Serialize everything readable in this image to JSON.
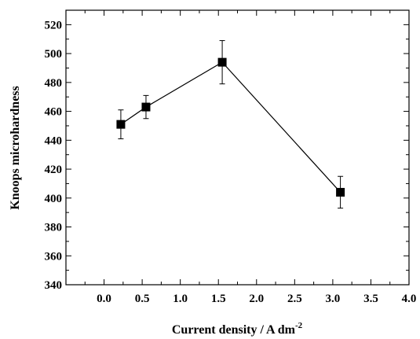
{
  "chart_data": {
    "type": "line",
    "xlabel": "Current density / A dm",
    "xlabel_superscript": "-2",
    "ylabel": "Knoops microhardness",
    "xlim": [
      -0.5,
      4.0
    ],
    "ylim": [
      340,
      530
    ],
    "x_ticks": [
      0.0,
      0.5,
      1.0,
      1.5,
      2.0,
      2.5,
      3.0,
      3.5,
      4.0
    ],
    "x_tick_labels": [
      "0.0",
      "0.5",
      "1.0",
      "1.5",
      "2.0",
      "2.5",
      "3.0",
      "3.5",
      "4.0"
    ],
    "y_ticks": [
      340,
      360,
      380,
      400,
      420,
      440,
      460,
      480,
      500,
      520
    ],
    "y_tick_labels": [
      "340",
      "360",
      "380",
      "400",
      "420",
      "440",
      "460",
      "480",
      "500",
      "520"
    ],
    "grid": false,
    "series": [
      {
        "marker": "square",
        "color": "#000000",
        "x": [
          0.22,
          0.55,
          1.55,
          3.1
        ],
        "y": [
          451,
          463,
          494,
          404
        ],
        "yerr": [
          10,
          8,
          15,
          11
        ]
      }
    ]
  }
}
